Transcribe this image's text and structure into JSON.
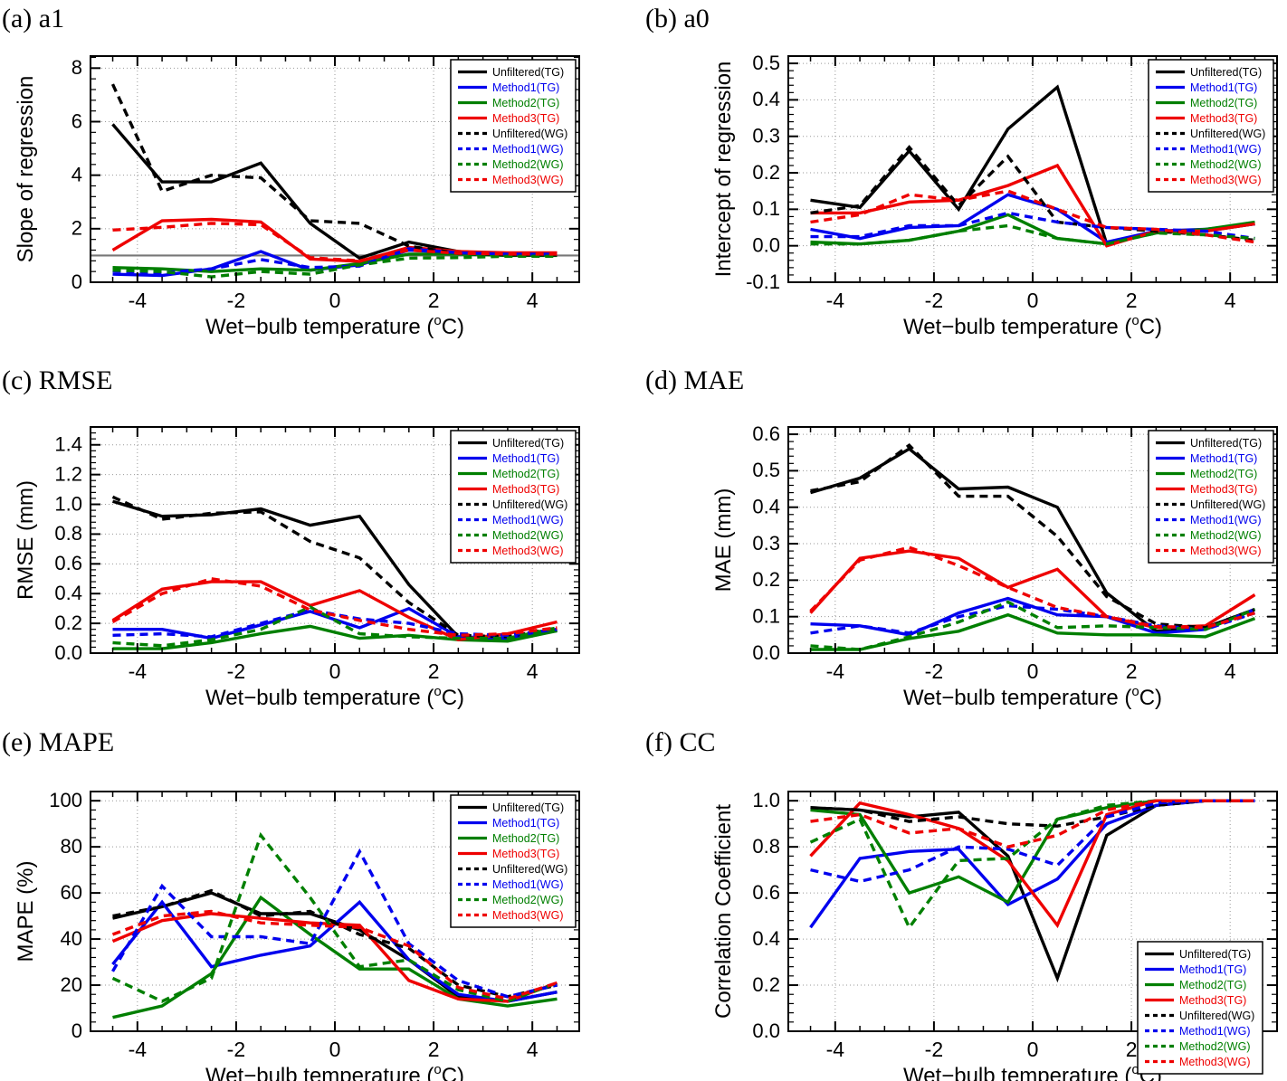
{
  "figure": {
    "background": "#ffffff"
  },
  "shared": {
    "x_values": [
      -4.5,
      -3.5,
      -2.5,
      -1.5,
      -0.5,
      0.5,
      1.5,
      2.5,
      3.5,
      4.5
    ],
    "xlim": [
      -4.95,
      4.95
    ],
    "xticks": [
      -4,
      -2,
      0,
      2,
      4
    ],
    "xminor_step": 0.5,
    "xlabel_pre": "Wet−bulb temperature (",
    "xlabel_sup": "o",
    "xlabel_post": "C)",
    "colors": {
      "black": "#000000",
      "blue": "#0000ee",
      "green": "#007f00",
      "red": "#ee0000"
    },
    "legend_entries": [
      "Unfiltered(TG)",
      "Method1(TG)",
      "Method2(TG)",
      "Method3(TG)",
      "Unfiltered(WG)",
      "Method1(WG)",
      "Method2(WG)",
      "Method3(WG)"
    ]
  },
  "chart_data": [
    {
      "id": "a",
      "type": "line",
      "panel_title": "(a) a1",
      "ylabel": "Slope of regression",
      "ylim": [
        0,
        8.45
      ],
      "yticks": [
        0,
        2,
        4,
        6,
        8
      ],
      "ydecimals": 0,
      "hline": 1.0,
      "legend_position": "top-right",
      "series": [
        {
          "name": "Unfiltered(TG)",
          "color": "black",
          "dash": false,
          "values": [
            5.9,
            3.75,
            3.75,
            4.45,
            2.2,
            0.9,
            1.5,
            1.15,
            1.05,
            1.05
          ]
        },
        {
          "name": "Method1(TG)",
          "color": "blue",
          "dash": false,
          "values": [
            0.3,
            0.25,
            0.5,
            1.15,
            0.45,
            0.65,
            1.2,
            1.1,
            1.05,
            1.05
          ]
        },
        {
          "name": "Method2(TG)",
          "color": "green",
          "dash": false,
          "values": [
            0.55,
            0.5,
            0.4,
            0.5,
            0.45,
            0.7,
            1.05,
            1.05,
            1.0,
            1.0
          ]
        },
        {
          "name": "Method3(TG)",
          "color": "red",
          "dash": false,
          "values": [
            1.2,
            2.3,
            2.35,
            2.25,
            0.87,
            0.78,
            1.3,
            1.15,
            1.1,
            1.1
          ]
        },
        {
          "name": "Unfiltered(WG)",
          "color": "black",
          "dash": true,
          "values": [
            7.4,
            3.4,
            4.0,
            3.9,
            2.3,
            2.2,
            1.35,
            1.08,
            1.02,
            1.02
          ]
        },
        {
          "name": "Method1(WG)",
          "color": "blue",
          "dash": true,
          "values": [
            0.42,
            0.35,
            0.5,
            0.85,
            0.55,
            0.6,
            1.25,
            1.1,
            1.05,
            1.05
          ]
        },
        {
          "name": "Method2(WG)",
          "color": "green",
          "dash": true,
          "values": [
            0.45,
            0.4,
            0.2,
            0.4,
            0.3,
            0.65,
            0.9,
            0.92,
            0.97,
            0.97
          ]
        },
        {
          "name": "Method3(WG)",
          "color": "red",
          "dash": true,
          "values": [
            1.95,
            2.05,
            2.2,
            2.15,
            0.92,
            0.8,
            1.2,
            1.08,
            1.05,
            1.05
          ]
        }
      ]
    },
    {
      "id": "b",
      "type": "line",
      "panel_title": "(b) a0",
      "ylabel": "Intercept of regression",
      "ylim": [
        -0.1,
        0.52
      ],
      "yticks": [
        -0.1,
        0.0,
        0.1,
        0.2,
        0.3,
        0.4,
        0.5
      ],
      "ydecimals": 1,
      "hline": null,
      "legend_position": "top-right",
      "series": [
        {
          "name": "Unfiltered(TG)",
          "color": "black",
          "dash": false,
          "values": [
            0.125,
            0.105,
            0.26,
            0.1,
            0.32,
            0.435,
            0.005,
            0.04,
            0.04,
            0.06
          ]
        },
        {
          "name": "Method1(TG)",
          "color": "blue",
          "dash": false,
          "values": [
            0.045,
            0.02,
            0.05,
            0.055,
            0.14,
            0.1,
            0.01,
            0.04,
            0.045,
            0.06
          ]
        },
        {
          "name": "Method2(TG)",
          "color": "green",
          "dash": false,
          "values": [
            0.01,
            0.005,
            0.015,
            0.04,
            0.085,
            0.02,
            0.005,
            0.035,
            0.045,
            0.065
          ]
        },
        {
          "name": "Method3(TG)",
          "color": "red",
          "dash": false,
          "values": [
            0.09,
            0.09,
            0.12,
            0.125,
            0.165,
            0.22,
            0.0,
            0.04,
            0.04,
            0.06
          ]
        },
        {
          "name": "Unfiltered(WG)",
          "color": "black",
          "dash": true,
          "values": [
            0.09,
            0.11,
            0.27,
            0.11,
            0.245,
            0.065,
            0.05,
            0.04,
            0.03,
            0.015
          ]
        },
        {
          "name": "Method1(WG)",
          "color": "blue",
          "dash": true,
          "values": [
            0.025,
            0.025,
            0.055,
            0.055,
            0.09,
            0.065,
            0.05,
            0.045,
            0.04,
            0.02
          ]
        },
        {
          "name": "Method2(WG)",
          "color": "green",
          "dash": true,
          "values": [
            0.005,
            0.005,
            0.015,
            0.04,
            0.055,
            0.02,
            0.005,
            0.035,
            0.03,
            0.02
          ]
        },
        {
          "name": "Method3(WG)",
          "color": "red",
          "dash": true,
          "values": [
            0.065,
            0.085,
            0.14,
            0.125,
            0.15,
            0.1,
            0.05,
            0.045,
            0.03,
            0.01
          ]
        }
      ]
    },
    {
      "id": "c",
      "type": "line",
      "panel_title": "(c) RMSE",
      "ylabel": "RMSE (mm)",
      "ylim": [
        0,
        1.52
      ],
      "yticks": [
        0.0,
        0.2,
        0.4,
        0.6,
        0.8,
        1.0,
        1.2,
        1.4
      ],
      "ydecimals": 1,
      "hline": null,
      "legend_position": "top-right",
      "series": [
        {
          "name": "Unfiltered(TG)",
          "color": "black",
          "dash": false,
          "values": [
            1.02,
            0.92,
            0.93,
            0.97,
            0.86,
            0.92,
            0.46,
            0.11,
            0.09,
            0.16
          ]
        },
        {
          "name": "Method1(TG)",
          "color": "blue",
          "dash": false,
          "values": [
            0.16,
            0.16,
            0.1,
            0.19,
            0.28,
            0.17,
            0.3,
            0.11,
            0.1,
            0.15
          ]
        },
        {
          "name": "Method2(TG)",
          "color": "green",
          "dash": false,
          "values": [
            0.03,
            0.03,
            0.07,
            0.13,
            0.18,
            0.1,
            0.12,
            0.09,
            0.08,
            0.15
          ]
        },
        {
          "name": "Method3(TG)",
          "color": "red",
          "dash": false,
          "values": [
            0.22,
            0.43,
            0.48,
            0.48,
            0.32,
            0.42,
            0.24,
            0.09,
            0.13,
            0.21
          ]
        },
        {
          "name": "Unfiltered(WG)",
          "color": "black",
          "dash": true,
          "values": [
            1.05,
            0.9,
            0.94,
            0.95,
            0.75,
            0.64,
            0.34,
            0.12,
            0.11,
            0.17
          ]
        },
        {
          "name": "Method1(WG)",
          "color": "blue",
          "dash": true,
          "values": [
            0.12,
            0.13,
            0.11,
            0.2,
            0.29,
            0.23,
            0.2,
            0.13,
            0.12,
            0.16
          ]
        },
        {
          "name": "Method2(WG)",
          "color": "green",
          "dash": true,
          "values": [
            0.07,
            0.05,
            0.09,
            0.16,
            0.31,
            0.13,
            0.11,
            0.1,
            0.1,
            0.17
          ]
        },
        {
          "name": "Method3(WG)",
          "color": "red",
          "dash": true,
          "values": [
            0.21,
            0.4,
            0.5,
            0.45,
            0.29,
            0.22,
            0.16,
            0.12,
            0.13,
            0.17
          ]
        }
      ]
    },
    {
      "id": "d",
      "type": "line",
      "panel_title": "(d) MAE",
      "ylabel": "MAE (mm)",
      "ylim": [
        0,
        0.62
      ],
      "yticks": [
        0.0,
        0.1,
        0.2,
        0.3,
        0.4,
        0.5,
        0.6
      ],
      "ydecimals": 1,
      "hline": null,
      "legend_position": "top-right",
      "series": [
        {
          "name": "Unfiltered(TG)",
          "color": "black",
          "dash": false,
          "values": [
            0.44,
            0.48,
            0.56,
            0.45,
            0.455,
            0.4,
            0.165,
            0.06,
            0.07,
            0.12
          ]
        },
        {
          "name": "Method1(TG)",
          "color": "blue",
          "dash": false,
          "values": [
            0.08,
            0.075,
            0.05,
            0.11,
            0.15,
            0.105,
            0.1,
            0.055,
            0.065,
            0.12
          ]
        },
        {
          "name": "Method2(TG)",
          "color": "green",
          "dash": false,
          "values": [
            0.01,
            0.01,
            0.04,
            0.06,
            0.105,
            0.055,
            0.05,
            0.05,
            0.045,
            0.095
          ]
        },
        {
          "name": "Method3(TG)",
          "color": "red",
          "dash": false,
          "values": [
            0.11,
            0.26,
            0.28,
            0.26,
            0.18,
            0.23,
            0.1,
            0.07,
            0.075,
            0.16
          ]
        },
        {
          "name": "Unfiltered(WG)",
          "color": "black",
          "dash": true,
          "values": [
            0.445,
            0.47,
            0.57,
            0.43,
            0.43,
            0.32,
            0.155,
            0.08,
            0.07,
            0.12
          ]
        },
        {
          "name": "Method1(WG)",
          "color": "blue",
          "dash": true,
          "values": [
            0.055,
            0.075,
            0.055,
            0.1,
            0.13,
            0.12,
            0.1,
            0.075,
            0.065,
            0.11
          ]
        },
        {
          "name": "Method2(WG)",
          "color": "green",
          "dash": true,
          "values": [
            0.02,
            0.01,
            0.045,
            0.085,
            0.14,
            0.07,
            0.075,
            0.07,
            0.065,
            0.12
          ]
        },
        {
          "name": "Method3(WG)",
          "color": "red",
          "dash": true,
          "values": [
            0.115,
            0.255,
            0.29,
            0.24,
            0.18,
            0.125,
            0.1,
            0.073,
            0.07,
            0.11
          ]
        }
      ]
    },
    {
      "id": "e",
      "type": "line",
      "panel_title": "(e) MAPE",
      "ylabel": "MAPE (%)",
      "ylim": [
        0,
        104
      ],
      "yticks": [
        0,
        20,
        40,
        60,
        80,
        100
      ],
      "ydecimals": 0,
      "hline": null,
      "legend_position": "top-right",
      "series": [
        {
          "name": "Unfiltered(TG)",
          "color": "black",
          "dash": false,
          "values": [
            49,
            54,
            60,
            51,
            51,
            44,
            31,
            15,
            13,
            17
          ]
        },
        {
          "name": "Method1(TG)",
          "color": "blue",
          "dash": false,
          "values": [
            29,
            56,
            28,
            33,
            37,
            56,
            31,
            16,
            13,
            17
          ]
        },
        {
          "name": "Method2(TG)",
          "color": "green",
          "dash": false,
          "values": [
            6,
            11,
            25,
            58,
            42,
            27,
            27,
            14,
            11,
            14
          ]
        },
        {
          "name": "Method3(TG)",
          "color": "red",
          "dash": false,
          "values": [
            39,
            48,
            51,
            49,
            47,
            46,
            22,
            14,
            13,
            21
          ]
        },
        {
          "name": "Unfiltered(WG)",
          "color": "black",
          "dash": true,
          "values": [
            50,
            54,
            61,
            50,
            52,
            42,
            36,
            20,
            15,
            20
          ]
        },
        {
          "name": "Method1(WG)",
          "color": "blue",
          "dash": true,
          "values": [
            26,
            63,
            41,
            41,
            38,
            78,
            38,
            22,
            15,
            20
          ]
        },
        {
          "name": "Method2(WG)",
          "color": "green",
          "dash": true,
          "values": [
            23,
            13,
            23,
            85,
            58,
            28,
            31,
            18,
            13,
            21
          ]
        },
        {
          "name": "Method3(WG)",
          "color": "red",
          "dash": true,
          "values": [
            42,
            50,
            52,
            47,
            46,
            45,
            37,
            19,
            14,
            21
          ]
        }
      ]
    },
    {
      "id": "f",
      "type": "line",
      "panel_title": "(f) CC",
      "ylabel": "Correlation Coefficient",
      "ylim": [
        0,
        1.04
      ],
      "yticks": [
        0.0,
        0.2,
        0.4,
        0.6,
        0.8,
        1.0
      ],
      "ydecimals": 1,
      "hline": null,
      "legend_position": "bottom-right",
      "series": [
        {
          "name": "Unfiltered(TG)",
          "color": "black",
          "dash": false,
          "values": [
            0.97,
            0.96,
            0.93,
            0.95,
            0.76,
            0.23,
            0.85,
            0.98,
            1.0,
            1.0
          ]
        },
        {
          "name": "Method1(TG)",
          "color": "blue",
          "dash": false,
          "values": [
            0.45,
            0.75,
            0.78,
            0.79,
            0.55,
            0.66,
            0.9,
            0.98,
            1.0,
            1.0
          ]
        },
        {
          "name": "Method2(TG)",
          "color": "green",
          "dash": false,
          "values": [
            0.96,
            0.94,
            0.6,
            0.67,
            0.56,
            0.92,
            0.97,
            1.0,
            1.0,
            1.0
          ]
        },
        {
          "name": "Method3(TG)",
          "color": "red",
          "dash": false,
          "values": [
            0.76,
            0.99,
            0.94,
            0.88,
            0.74,
            0.46,
            0.94,
            1.0,
            1.0,
            1.0
          ]
        },
        {
          "name": "Unfiltered(WG)",
          "color": "black",
          "dash": true,
          "values": [
            0.97,
            0.96,
            0.91,
            0.93,
            0.9,
            0.89,
            0.93,
            0.98,
            1.0,
            1.0
          ]
        },
        {
          "name": "Method1(WG)",
          "color": "blue",
          "dash": true,
          "values": [
            0.7,
            0.65,
            0.7,
            0.8,
            0.79,
            0.72,
            0.93,
            0.99,
            1.0,
            1.0
          ]
        },
        {
          "name": "Method2(WG)",
          "color": "green",
          "dash": true,
          "values": [
            0.82,
            0.92,
            0.45,
            0.74,
            0.75,
            0.92,
            0.98,
            1.0,
            1.0,
            1.0
          ]
        },
        {
          "name": "Method3(WG)",
          "color": "red",
          "dash": true,
          "values": [
            0.91,
            0.94,
            0.86,
            0.88,
            0.8,
            0.85,
            0.96,
            1.0,
            1.0,
            1.0
          ]
        }
      ]
    }
  ]
}
